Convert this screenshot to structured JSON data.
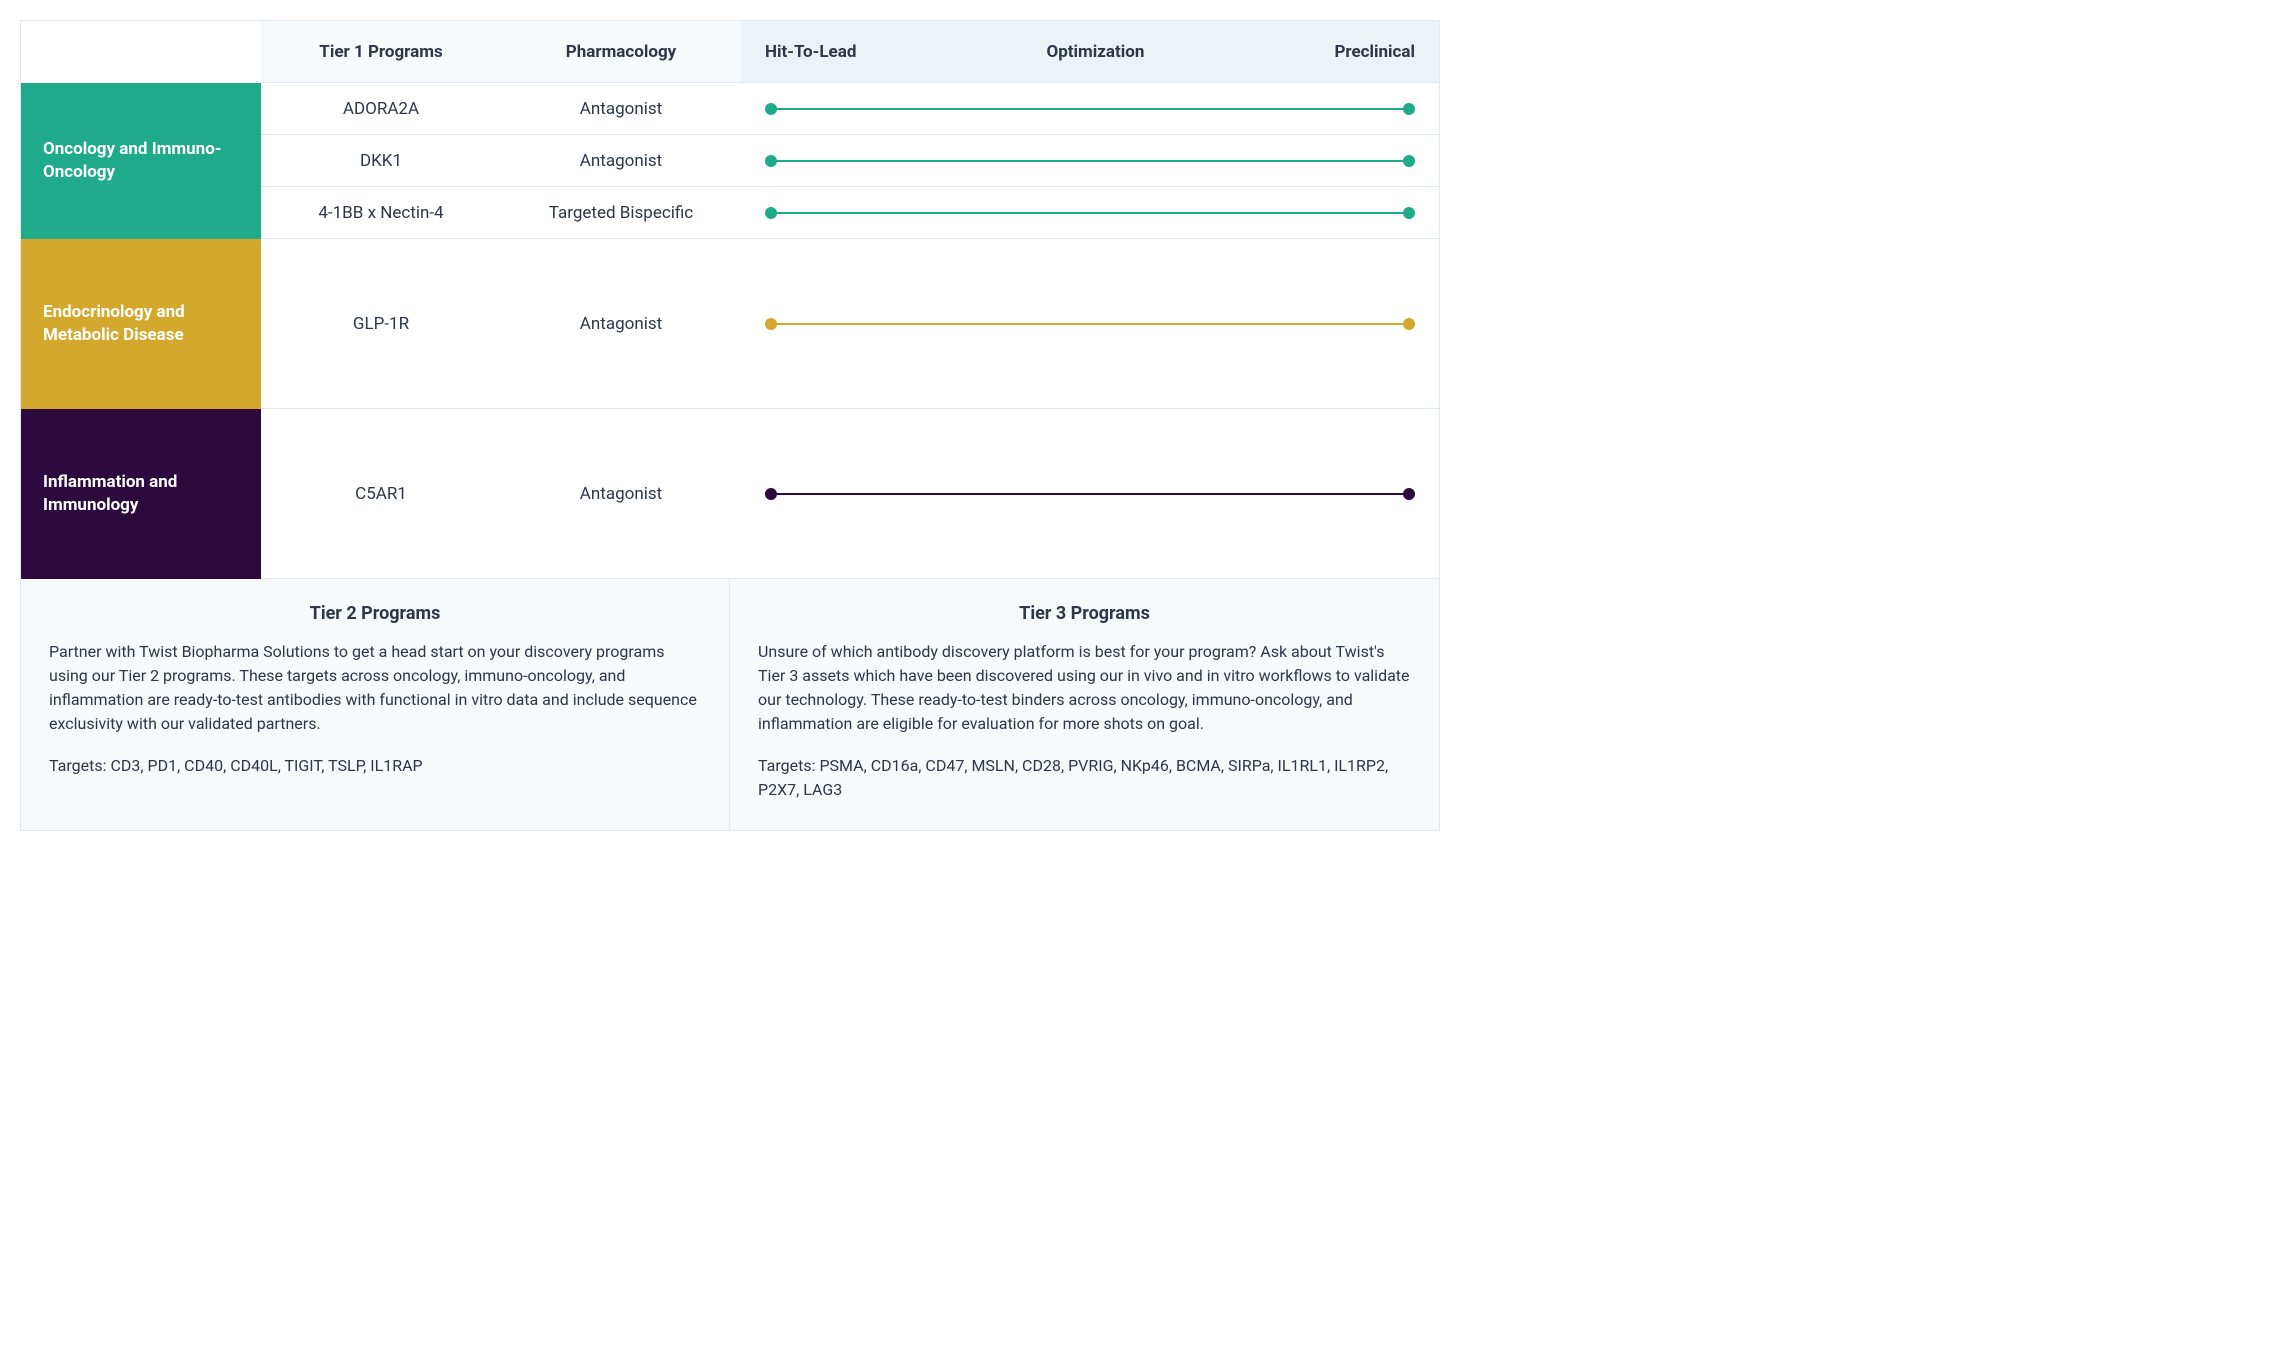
{
  "header": {
    "col_tier1": "Tier 1 Programs",
    "col_pharm": "Pharmacology",
    "stages": [
      "Hit-To-Lead",
      "Optimization",
      "Preclinical"
    ]
  },
  "colors": {
    "oncology": "#1fab89",
    "endocrinology": "#d4a82c",
    "inflammation": "#2d0a3e",
    "row_border": "#e2e8f0",
    "header_bg_light": "#f7fafc",
    "header_bg_stages": "#edf2f7",
    "text": "#2d3748"
  },
  "categories": [
    {
      "key": "oncology",
      "label": "Oncology and Immuno-Oncology",
      "color": "#1fab89",
      "tall": false,
      "programs": [
        {
          "name": "ADORA2A",
          "pharm": "Antagonist",
          "progress_start": 0,
          "progress_end": 1
        },
        {
          "name": "DKK1",
          "pharm": "Antagonist",
          "progress_start": 0,
          "progress_end": 1
        },
        {
          "name": "4-1BB x Nectin-4",
          "pharm": "Targeted Bispecific",
          "progress_start": 0,
          "progress_end": 1
        }
      ]
    },
    {
      "key": "endocrinology",
      "label": "Endocrinology and Metabolic Disease",
      "color": "#d4a82c",
      "tall": true,
      "programs": [
        {
          "name": "GLP-1R",
          "pharm": "Antagonist",
          "progress_start": 0,
          "progress_end": 1
        }
      ]
    },
    {
      "key": "inflammation",
      "label": "Inflammation and Immunology",
      "color": "#2d0a3e",
      "tall": true,
      "programs": [
        {
          "name": "C5AR1",
          "pharm": "Antagonist",
          "progress_start": 0,
          "progress_end": 1
        }
      ]
    }
  ],
  "bottom": {
    "tier2": {
      "title": "Tier 2 Programs",
      "body": "Partner with Twist Biopharma Solutions to get a head start on your discovery programs using our Tier 2 programs. These targets across oncology, immuno-oncology, and inflammation are ready-to-test antibodies with functional in vitro data and include sequence exclusivity with our validated partners.",
      "targets": "Targets: CD3, PD1, CD40, CD40L, TIGIT, TSLP, IL1RAP"
    },
    "tier3": {
      "title": "Tier 3 Programs",
      "body": "Unsure of which antibody discovery platform is best for your program? Ask about Twist's Tier 3 assets which have been discovered using our in vivo and in vitro workflows to validate our technology. These ready-to-test binders across oncology, immuno-oncology, and inflammation are eligible for evaluation for more shots on goal.",
      "targets": "Targets: PSMA, CD16a, CD47, MSLN, CD28, PVRIG, NKp46, BCMA, SIRPa, IL1RL1, IL1RP2, P2X7, LAG3"
    }
  }
}
